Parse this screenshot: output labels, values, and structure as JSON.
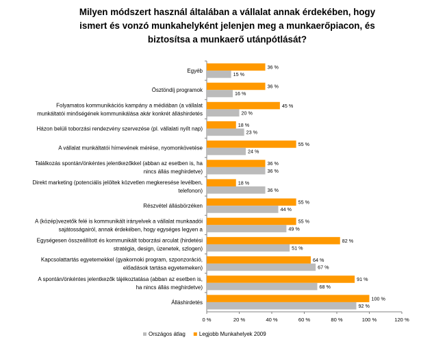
{
  "chart_data": {
    "type": "bar",
    "orientation": "horizontal",
    "title_lines": [
      "Milyen módszert használ általában a vállalat annak érdekében, hogy",
      "ismert és vonzó munkahelyként jelenjen meg a munkaerőpiacon, és",
      "biztosítsa a munkaerő utánpótlását?"
    ],
    "categories": [
      [
        "Egyéb"
      ],
      [
        "Ösztöndíj programok"
      ],
      [
        "Folyamatos kommunikációs kampány a médiában (a vállalat",
        "munkáltatói minőségének kommunikálása akár konkrét álláshirdetés"
      ],
      [
        "Házon belüli toborzási rendezvény szervezése (pl. vállalati nyílt nap)"
      ],
      [
        "A vállalat munkáltatói hírnevének mérése, nyomonkövetése"
      ],
      [
        "Találkozás spontán/önkéntes jelentkezőkkel (abban az esetben is, ha",
        "nincs állás meghirdetve)"
      ],
      [
        "Direkt marketing (potenciális jelöltek közvetlen megkeresése levélben,",
        "telefonon)"
      ],
      [
        "Részvétel állásbörzéken"
      ],
      [
        "A (közép)vezetők felé is kommunikált irányelvek a vállalat munkaadói",
        "sajátosságairól, annak érdekében, hogy egységes legyen a"
      ],
      [
        "Egységesen összeállított és kommunikált toborzási arculat (hirdetési",
        "stratégia, design, üzenetek, szlogen)"
      ],
      [
        "Kapcsolattartás egyetemekkel (gyakornoki program, szponzoráció,",
        "előadások tartása egyetemeken)"
      ],
      [
        "A spontán/önkéntes jelentkezők tájékoztatása (abban az esetben is,",
        "ha nincs állás meghirdetve)"
      ],
      [
        "Álláshirdetés"
      ]
    ],
    "series": [
      {
        "name": "Legjobb Munkahelyek 2009",
        "color": "#FF9900",
        "values": [
          36,
          36,
          45,
          18,
          55,
          36,
          18,
          55,
          55,
          82,
          64,
          91,
          100
        ],
        "labels": [
          "36 %",
          "36 %",
          "45 %",
          "18 %",
          "55 %",
          "36 %",
          "18 %",
          "55 %",
          "55 %",
          "82 %",
          "64 %",
          "91 %",
          "100 %"
        ]
      },
      {
        "name": "Országos átlag",
        "color": "#BBBBBB",
        "values": [
          15,
          16,
          20,
          23,
          24,
          36,
          36,
          44,
          49,
          51,
          67,
          68,
          92
        ],
        "labels": [
          "15 %",
          "16 %",
          "20 %",
          "23 %",
          "24 %",
          "36 %",
          "36 %",
          "44 %",
          "49 %",
          "51 %",
          "67 %",
          "68 %",
          "92 %"
        ]
      }
    ],
    "xlim": [
      0,
      120
    ],
    "xticks": [
      "0 %",
      "20 %",
      "40 %",
      "60 %",
      "80 %",
      "100 %",
      "120 %"
    ],
    "legend_order": [
      "Országos átlag",
      "Legjobb Munkahelyek 2009"
    ],
    "legend_position": "bottom",
    "grid": false
  }
}
